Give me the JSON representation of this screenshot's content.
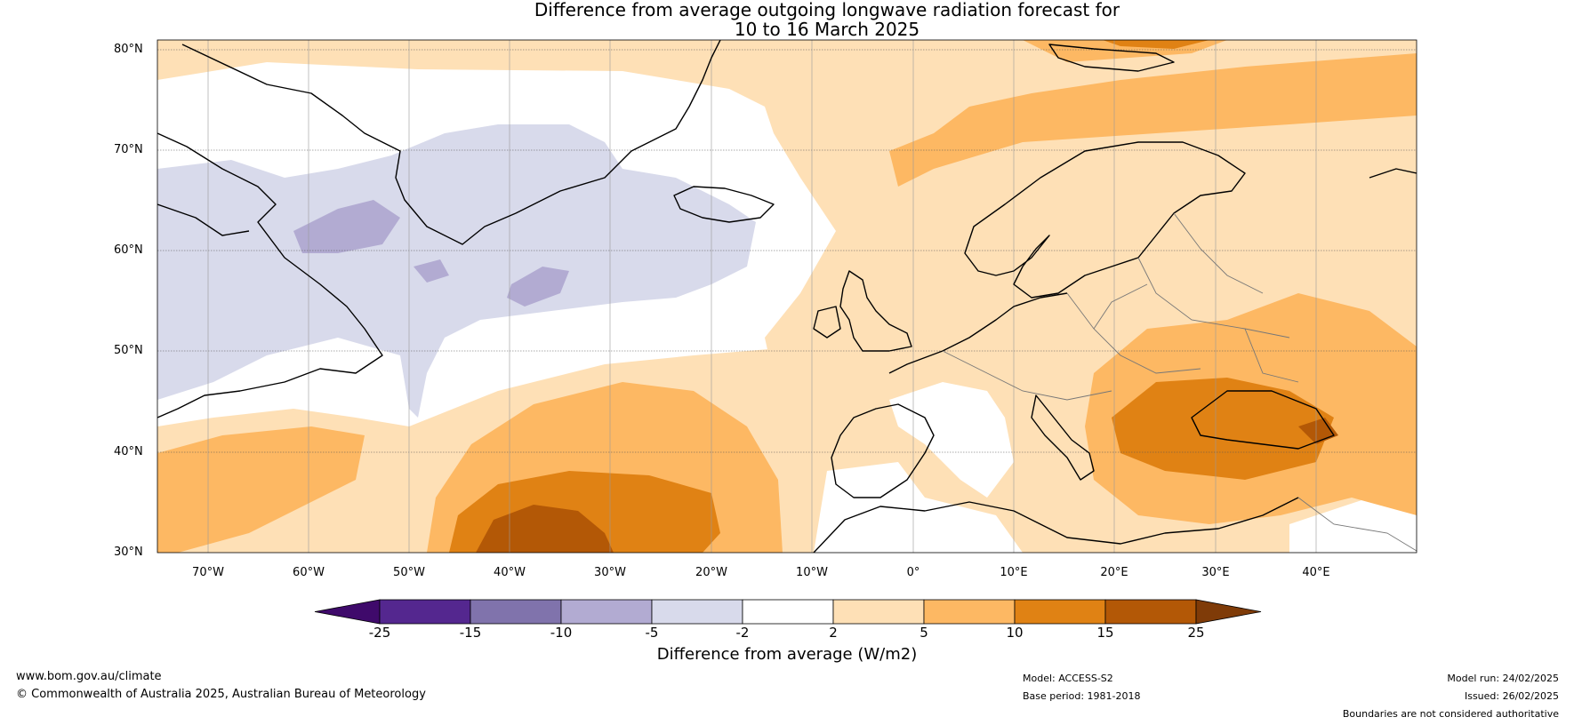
{
  "title": {
    "line1": "Difference from average outgoing longwave radiation forecast for",
    "line2": "10 to 16 March 2025"
  },
  "map": {
    "lat_labels": [
      "80°N",
      "70°N",
      "60°N",
      "50°N",
      "40°N",
      "30°N"
    ],
    "lon_labels": [
      "70°W",
      "60°W",
      "50°W",
      "40°W",
      "30°W",
      "20°W",
      "10°W",
      "0°",
      "10°E",
      "20°E",
      "30°E",
      "40°E"
    ]
  },
  "colorbar": {
    "ticks": [
      "-25",
      "-15",
      "-10",
      "-5",
      "-2",
      "2",
      "5",
      "10",
      "15",
      "25"
    ],
    "colors": [
      "#3f0a6b",
      "#54278f",
      "#8073ac",
      "#b2abd2",
      "#d8daeb",
      "#ffffff",
      "#fee0b6",
      "#fdb863",
      "#e08214",
      "#b35806",
      "#7f3b08"
    ],
    "label": "Difference from average (W/m2)"
  },
  "footer": {
    "website": "www.bom.gov.au/climate",
    "copyright": "© Commonwealth of Australia 2025, Australian Bureau of Meteorology",
    "model": "Model: ACCESS-S2",
    "base_period": "Base period: 1981-2018",
    "model_run": "Model run: 24/02/2025",
    "issued": "Issued: 26/02/2025",
    "disclaimer": "Boundaries are not considered authoritative"
  }
}
